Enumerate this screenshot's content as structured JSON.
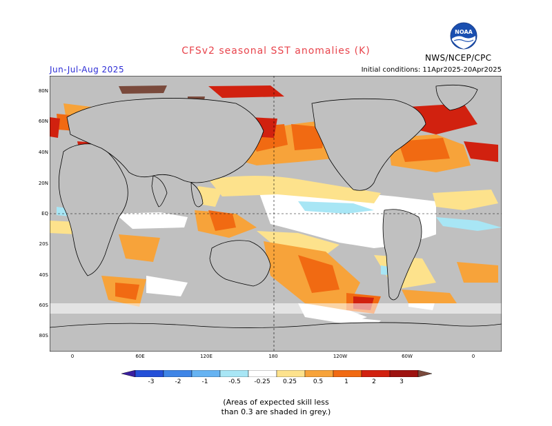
{
  "header": {
    "title": "CFSv2 seasonal SST anomalies (K)",
    "season": "Jun-Jul-Aug 2025",
    "initial_conditions": "Initial conditions: 11Apr2025-20Apr2025",
    "agency": "NWS/NCEP/CPC",
    "logo_text": "NOAA"
  },
  "map": {
    "lat_labels": [
      "80N",
      "60N",
      "40N",
      "20N",
      "EQ",
      "20S",
      "40S",
      "60S",
      "80S"
    ],
    "lon_labels": [
      "0",
      "60E",
      "120E",
      "180",
      "120W",
      "60W",
      "0"
    ],
    "projection": "cylindrical equidistant, 20E to 20E",
    "ocean_no_skill_color": "#c0c0c0",
    "land_color": "#c0c0c0"
  },
  "colorbar": {
    "tick_labels": [
      "-3",
      "-2",
      "-1",
      "-0.5",
      "-0.25",
      "0.25",
      "0.5",
      "1",
      "2",
      "3"
    ],
    "colors": [
      "#3a1fa0",
      "#2450d8",
      "#3f85e6",
      "#66b3f2",
      "#a8e6f5",
      "#ffffff",
      "#fde28c",
      "#f7a33a",
      "#f16a12",
      "#d1210f",
      "#9e1310",
      "#7a4a3c"
    ]
  },
  "footnote": {
    "line1": "(Areas of expected skill less",
    "line2": "than 0.3 are shaded in grey.)"
  }
}
